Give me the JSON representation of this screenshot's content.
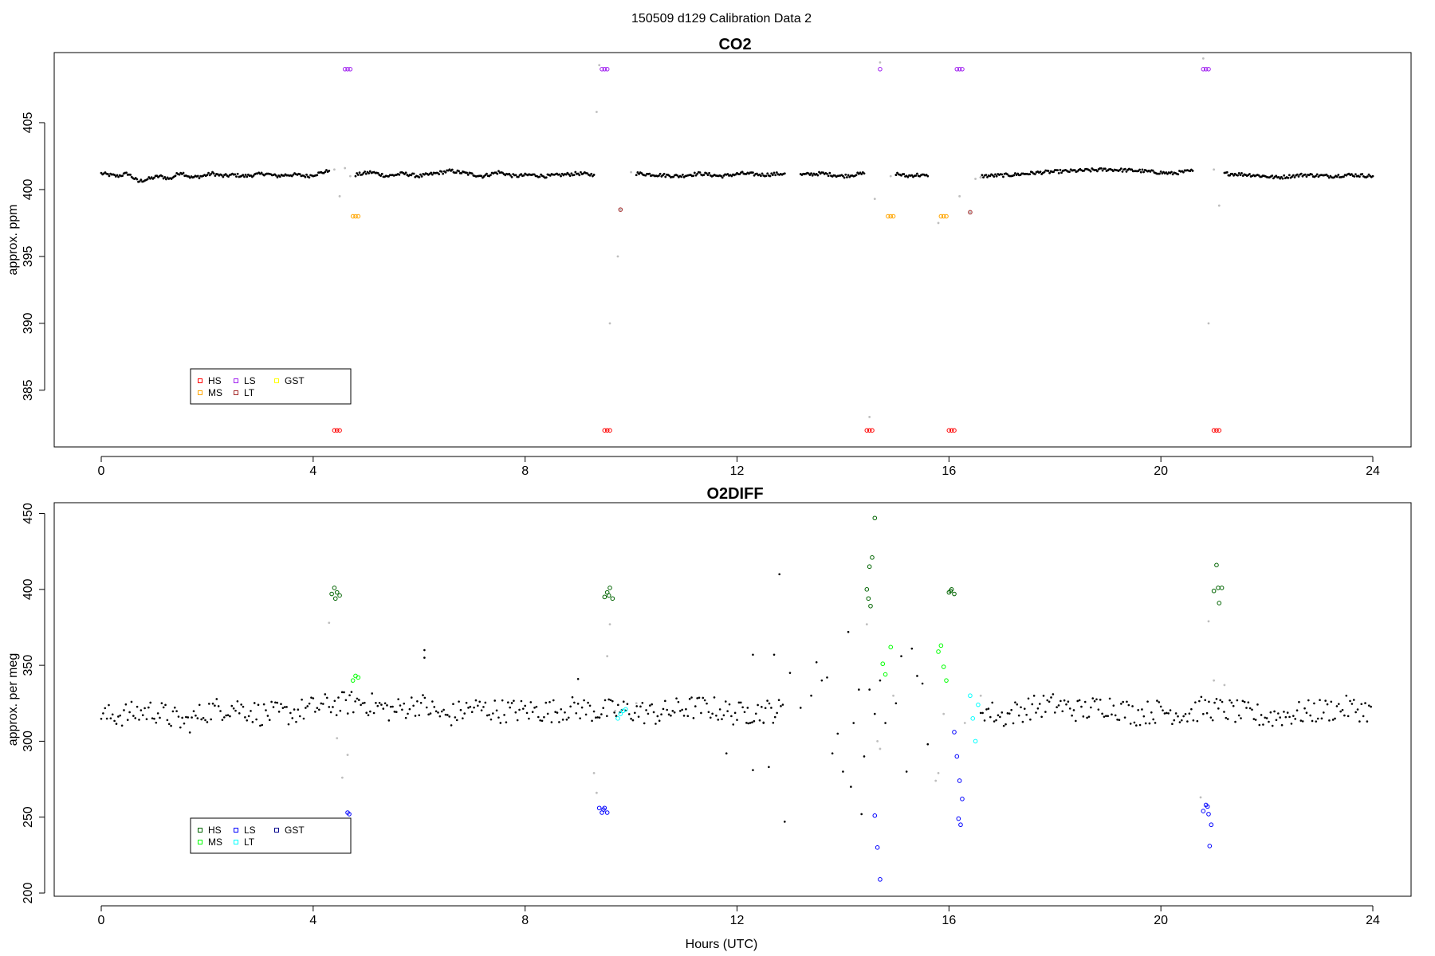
{
  "figure": {
    "suptitle": "150509   d129   Calibration Data 2",
    "xlabel": "Hours (UTC)"
  },
  "chart_data": [
    {
      "type": "scatter",
      "title": "CO2",
      "xlabel": "",
      "ylabel": "approx. ppm",
      "xlim": [
        0,
        24
      ],
      "ylim": [
        381,
        410
      ],
      "xticks": [
        "0",
        "4",
        "8",
        "12",
        "16",
        "20",
        "24"
      ],
      "yticks": [
        "385",
        "390",
        "395",
        "400",
        "405"
      ],
      "legend": {
        "position": "bottom-left",
        "entries": [
          {
            "label": "HS",
            "color": "#ff0000"
          },
          {
            "label": "LS",
            "color": "#a020f0"
          },
          {
            "label": "GST",
            "color": "#ffff00"
          },
          {
            "label": "MS",
            "color": "#ffa500"
          },
          {
            "label": "LT",
            "color": "#a52a2a"
          }
        ]
      },
      "series": [
        {
          "name": "data",
          "color": "#000000",
          "segments": [
            {
              "x": [
                0.0,
                0.3,
                0.5,
                0.7,
                0.9,
                1.1,
                1.3,
                1.5,
                1.7,
                1.9,
                2.1,
                2.3,
                2.5,
                2.7,
                2.9,
                3.1,
                3.3,
                3.5,
                3.7,
                3.9,
                4.1,
                4.3
              ],
              "y": [
                401.2,
                401.0,
                401.2,
                400.6,
                400.8,
                401.0,
                400.8,
                401.3,
                400.9,
                401.0,
                401.2,
                401.0,
                401.1,
                401.0,
                401.1,
                401.2,
                401.0,
                401.1,
                401.1,
                401.0,
                401.2,
                401.4
              ]
            },
            {
              "x": [
                4.8,
                5.1,
                5.4,
                5.7,
                6.0,
                6.3,
                6.6,
                6.9,
                7.2,
                7.5,
                7.8,
                8.1,
                8.4,
                8.7,
                9.0,
                9.3
              ],
              "y": [
                401.1,
                401.3,
                401.0,
                401.2,
                401.0,
                401.2,
                401.4,
                401.2,
                401.0,
                401.3,
                401.0,
                401.1,
                401.0,
                401.1,
                401.2,
                401.1
              ]
            },
            {
              "x": [
                10.1,
                10.5,
                10.9,
                11.3,
                11.7,
                12.1,
                12.5,
                12.9
              ],
              "y": [
                401.2,
                401.1,
                401.0,
                401.2,
                401.0,
                401.2,
                401.1,
                401.2
              ]
            },
            {
              "x": [
                13.2,
                13.6,
                14.0,
                14.4
              ],
              "y": [
                401.1,
                401.2,
                401.0,
                401.2
              ]
            },
            {
              "x": [
                15.0,
                15.2,
                15.4,
                15.6
              ],
              "y": [
                401.2,
                401.0,
                401.1,
                401.0
              ]
            },
            {
              "x": [
                16.6,
                17.2,
                17.8,
                18.4,
                19.0,
                19.6,
                20.2,
                20.6
              ],
              "y": [
                401.0,
                401.1,
                401.3,
                401.4,
                401.5,
                401.4,
                401.2,
                401.4
              ]
            },
            {
              "x": [
                21.2,
                21.7,
                22.2,
                22.7,
                23.2,
                23.6,
                24.0
              ],
              "y": [
                401.2,
                401.1,
                400.9,
                401.1,
                401.0,
                401.1,
                401.0
              ]
            }
          ]
        },
        {
          "name": "transition",
          "color": "#bebebe",
          "points": [
            [
              4.4,
              401.5
            ],
            [
              4.5,
              399.5
            ],
            [
              4.6,
              401.6
            ],
            [
              4.7,
              401.0
            ],
            [
              9.35,
              405.8
            ],
            [
              9.4,
              409.3
            ],
            [
              9.6,
              390.0
            ],
            [
              9.75,
              395.0
            ],
            [
              9.8,
              398.5
            ],
            [
              10.0,
              401.3
            ],
            [
              14.6,
              399.3
            ],
            [
              14.7,
              409.5
            ],
            [
              14.9,
              401.0
            ],
            [
              15.8,
              397.5
            ],
            [
              16.2,
              399.5
            ],
            [
              16.4,
              398.3
            ],
            [
              16.5,
              400.8
            ],
            [
              16.6,
              400.9
            ],
            [
              20.8,
              409.8
            ],
            [
              20.9,
              390.0
            ],
            [
              21.0,
              401.5
            ],
            [
              21.1,
              398.8
            ],
            [
              14.5,
              383.0
            ]
          ]
        },
        {
          "name": "HS",
          "color": "#ff0000",
          "marker": "circle",
          "x": [
            4.4,
            4.45,
            4.5,
            9.5,
            9.55,
            9.6,
            14.45,
            14.5,
            14.55,
            16.0,
            16.05,
            16.1,
            21.0,
            21.05,
            21.1
          ],
          "y": [
            382.0,
            382.0,
            382.0,
            382.0,
            382.0,
            382.0,
            382.0,
            382.0,
            382.0,
            382.0,
            382.0,
            382.0,
            382.0,
            382.0,
            382.0
          ]
        },
        {
          "name": "LS",
          "color": "#a020f0",
          "marker": "circle",
          "x": [
            4.6,
            4.65,
            4.7,
            9.45,
            9.5,
            9.55,
            14.7,
            16.15,
            16.2,
            16.25,
            20.8,
            20.85,
            20.9
          ],
          "y": [
            409.0,
            409.0,
            409.0,
            409.0,
            409.0,
            409.0,
            409.0,
            409.0,
            409.0,
            409.0,
            409.0,
            409.0,
            409.0
          ]
        },
        {
          "name": "MS",
          "color": "#ffa500",
          "marker": "circle",
          "x": [
            4.75,
            4.8,
            4.85,
            14.85,
            14.9,
            14.95,
            15.85,
            15.9,
            15.95
          ],
          "y": [
            398.0,
            398.0,
            398.0,
            398.0,
            398.0,
            398.0,
            398.0,
            398.0,
            398.0
          ]
        },
        {
          "name": "LT",
          "color": "#a52a2a",
          "marker": "circle",
          "x": [
            9.8,
            16.4
          ],
          "y": [
            398.5,
            398.3
          ]
        }
      ]
    },
    {
      "type": "scatter",
      "title": "O2DIFF",
      "xlabel": "Hours (UTC)",
      "ylabel": "approx. per meg",
      "xlim": [
        0,
        24
      ],
      "ylim": [
        200,
        455
      ],
      "xticks": [
        "0",
        "4",
        "8",
        "12",
        "16",
        "20",
        "24"
      ],
      "yticks": [
        "200",
        "250",
        "300",
        "350",
        "400",
        "450"
      ],
      "legend": {
        "position": "bottom-left",
        "entries": [
          {
            "label": "HS",
            "color": "#006400"
          },
          {
            "label": "LS",
            "color": "#0000ff"
          },
          {
            "label": "GST",
            "color": "#00008b"
          },
          {
            "label": "MS",
            "color": "#00ff00"
          },
          {
            "label": "LT",
            "color": "#00ffff"
          }
        ]
      },
      "series": [
        {
          "name": "data",
          "color": "#000000",
          "baseline": [
            [
              0.0,
              316
            ],
            [
              1.0,
              320
            ],
            [
              1.6,
              312
            ],
            [
              2.0,
              320
            ],
            [
              2.5,
              323
            ],
            [
              3.0,
              318
            ],
            [
              3.5,
              318
            ],
            [
              4.0,
              322
            ],
            [
              4.3,
              324
            ],
            [
              4.9,
              326
            ],
            [
              5.5,
              320
            ],
            [
              6.0,
              325
            ],
            [
              6.5,
              316
            ],
            [
              7.0,
              322
            ],
            [
              7.5,
              320
            ],
            [
              8.0,
              320
            ],
            [
              8.5,
              320
            ],
            [
              9.0,
              322
            ],
            [
              9.3,
              320
            ],
            [
              10.0,
              320
            ],
            [
              10.5,
              318
            ],
            [
              11.0,
              322
            ],
            [
              11.5,
              322
            ],
            [
              12.0,
              318
            ],
            [
              12.5,
              320
            ],
            [
              12.9,
              320
            ],
            [
              16.6,
              322
            ],
            [
              17.0,
              316
            ],
            [
              17.5,
              322
            ],
            [
              18.0,
              324
            ],
            [
              18.5,
              320
            ],
            [
              19.0,
              324
            ],
            [
              19.5,
              318
            ],
            [
              20.0,
              320
            ],
            [
              20.5,
              318
            ],
            [
              20.8,
              322
            ],
            [
              21.3,
              320
            ],
            [
              22.0,
              316
            ],
            [
              22.5,
              318
            ],
            [
              23.0,
              320
            ],
            [
              23.5,
              322
            ],
            [
              24.0,
              320
            ]
          ],
          "scattered": [
            [
              6.1,
              360
            ],
            [
              6.1,
              355
            ],
            [
              9.0,
              341
            ],
            [
              12.3,
              357
            ],
            [
              12.8,
              410
            ],
            [
              12.3,
              281
            ],
            [
              12.7,
              357
            ],
            [
              12.6,
              283
            ],
            [
              12.9,
              247
            ],
            [
              11.8,
              292
            ],
            [
              13.0,
              345
            ],
            [
              13.2,
              322
            ],
            [
              13.4,
              330
            ],
            [
              13.5,
              352
            ],
            [
              13.7,
              342
            ],
            [
              13.9,
              305
            ],
            [
              14.0,
              280
            ],
            [
              14.1,
              372
            ],
            [
              14.2,
              312
            ],
            [
              14.3,
              334
            ],
            [
              14.35,
              252
            ],
            [
              14.4,
              290
            ],
            [
              14.5,
              334
            ],
            [
              14.6,
              318
            ],
            [
              14.7,
              340
            ],
            [
              14.8,
              312
            ],
            [
              15.0,
              325
            ],
            [
              15.1,
              356
            ],
            [
              15.2,
              280
            ],
            [
              15.3,
              361
            ],
            [
              15.4,
              343
            ],
            [
              15.5,
              338
            ],
            [
              15.6,
              298
            ],
            [
              13.6,
              340
            ],
            [
              13.8,
              292
            ],
            [
              14.15,
              270
            ],
            [
              12.2,
              322
            ],
            [
              12.5,
              312
            ]
          ]
        },
        {
          "name": "transition",
          "color": "#bebebe",
          "points": [
            [
              4.3,
              378
            ],
            [
              4.45,
              302
            ],
            [
              4.55,
              276
            ],
            [
              4.65,
              291
            ],
            [
              9.3,
              279
            ],
            [
              9.35,
              266
            ],
            [
              9.55,
              356
            ],
            [
              9.6,
              377
            ],
            [
              9.7,
              320
            ],
            [
              10.1,
              325
            ],
            [
              14.45,
              377
            ],
            [
              14.65,
              300
            ],
            [
              14.95,
              330
            ],
            [
              15.8,
              279
            ],
            [
              15.75,
              274
            ],
            [
              15.9,
              318
            ],
            [
              16.3,
              312
            ],
            [
              16.6,
              330
            ],
            [
              20.75,
              263
            ],
            [
              20.9,
              379
            ],
            [
              21.0,
              340
            ],
            [
              21.2,
              337
            ],
            [
              14.7,
              295
            ]
          ]
        },
        {
          "name": "HS",
          "color": "#006400",
          "marker": "circle",
          "x": [
            4.35,
            4.4,
            4.45,
            4.5,
            4.42,
            9.5,
            9.55,
            9.6,
            9.65,
            9.58,
            14.45,
            14.5,
            14.55,
            14.48,
            14.52,
            14.6,
            16.0,
            16.05,
            16.1,
            16.03,
            21.0,
            21.05,
            21.1,
            21.15,
            21.08
          ],
          "y": [
            397,
            401,
            398,
            396,
            394,
            395,
            398,
            401,
            394,
            396,
            400,
            415,
            421,
            394,
            389,
            447,
            398,
            400,
            397,
            399,
            399,
            416,
            391,
            401,
            401
          ]
        },
        {
          "name": "LS",
          "color": "#0000ff",
          "marker": "circle",
          "x": [
            4.65,
            4.68,
            9.4,
            9.45,
            9.5,
            9.55,
            9.48,
            14.6,
            14.65,
            14.7,
            16.1,
            16.15,
            16.2,
            16.25,
            16.18,
            16.22,
            20.8,
            20.85,
            20.9,
            20.95,
            20.88,
            20.92
          ],
          "y": [
            253,
            252,
            256,
            253,
            256,
            253,
            255,
            251,
            230,
            209,
            306,
            290,
            274,
            262,
            249,
            245,
            254,
            258,
            252,
            245,
            257,
            231
          ]
        },
        {
          "name": "MS",
          "color": "#00ff00",
          "marker": "circle",
          "x": [
            4.75,
            4.8,
            4.85,
            14.75,
            14.8,
            14.9,
            15.8,
            15.85,
            15.9,
            15.95
          ],
          "y": [
            340,
            343,
            342,
            351,
            344,
            362,
            359,
            363,
            349,
            340
          ]
        },
        {
          "name": "LT",
          "color": "#00ffff",
          "marker": "circle",
          "x": [
            9.75,
            9.8,
            9.85,
            9.9,
            16.4,
            16.45,
            16.5,
            16.55
          ],
          "y": [
            315,
            318,
            320,
            321,
            330,
            315,
            300,
            324
          ]
        }
      ]
    }
  ]
}
